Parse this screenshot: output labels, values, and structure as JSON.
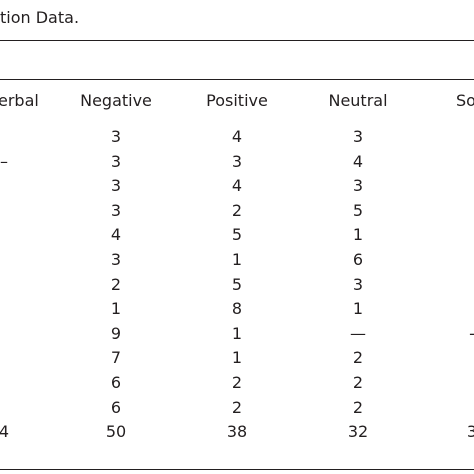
{
  "caption": "tion Data.",
  "columns": [
    "erbal",
    "Negative",
    "Positive",
    "Neutral",
    "So"
  ],
  "rows": [
    {
      "first": "",
      "negative": "3",
      "positive": "4",
      "neutral": "3"
    },
    {
      "first": "–",
      "negative": "3",
      "positive": "3",
      "neutral": "4"
    },
    {
      "first": "",
      "negative": "3",
      "positive": "4",
      "neutral": "3"
    },
    {
      "first": "",
      "negative": "3",
      "positive": "2",
      "neutral": "5"
    },
    {
      "first": "",
      "negative": "4",
      "positive": "5",
      "neutral": "1"
    },
    {
      "first": "",
      "negative": "3",
      "positive": "1",
      "neutral": "6"
    },
    {
      "first": "",
      "negative": "2",
      "positive": "5",
      "neutral": "3"
    },
    {
      "first": "",
      "negative": "1",
      "positive": "8",
      "neutral": "1"
    },
    {
      "first": "",
      "negative": "9",
      "positive": "1",
      "neutral": "—",
      "fifth": "-"
    },
    {
      "first": "",
      "negative": "7",
      "positive": "1",
      "neutral": "2"
    },
    {
      "first": "",
      "negative": "6",
      "positive": "2",
      "neutral": "2"
    },
    {
      "first": "",
      "negative": "6",
      "positive": "2",
      "neutral": "2"
    }
  ],
  "total": {
    "first": "4",
    "negative": "50",
    "positive": "38",
    "neutral": "32",
    "fifth": "3"
  }
}
